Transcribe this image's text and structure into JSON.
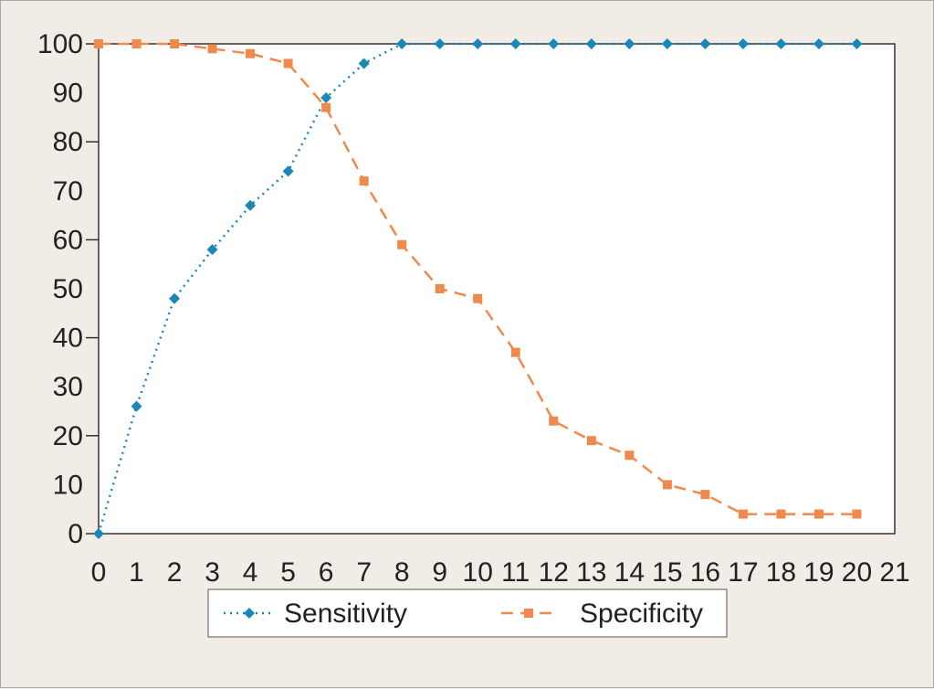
{
  "chart_data": {
    "type": "line",
    "title": "",
    "xlabel": "",
    "ylabel": "",
    "x": [
      0,
      1,
      2,
      3,
      4,
      5,
      6,
      7,
      8,
      9,
      10,
      11,
      12,
      13,
      14,
      15,
      16,
      17,
      18,
      19,
      20
    ],
    "x_ticks": [
      "0",
      "1",
      "2",
      "3",
      "4",
      "5",
      "6",
      "7",
      "8",
      "9",
      "10",
      "11",
      "12",
      "13",
      "14",
      "15",
      "16",
      "17",
      "18",
      "19",
      "20",
      "21"
    ],
    "xlim": [
      0,
      21
    ],
    "y_ticks": [
      "0",
      "10",
      "20",
      "30",
      "40",
      "50",
      "60",
      "70",
      "80",
      "90",
      "100"
    ],
    "ylim": [
      0,
      100
    ],
    "grid": false,
    "legend_position": "bottom",
    "series": [
      {
        "name": "Sensitivity",
        "color": "#1b87b7",
        "line_style": "dotted",
        "marker": "diamond",
        "values": [
          0,
          26,
          48,
          58,
          67,
          74,
          89,
          96,
          100,
          100,
          100,
          100,
          100,
          100,
          100,
          100,
          100,
          100,
          100,
          100,
          100
        ]
      },
      {
        "name": "Specificity",
        "color": "#ef8a4c",
        "line_style": "dashed",
        "marker": "square",
        "values": [
          100,
          100,
          100,
          99,
          98,
          96,
          87,
          72,
          59,
          50,
          48,
          37,
          23,
          19,
          16,
          10,
          8,
          4,
          4,
          4,
          4
        ]
      }
    ]
  }
}
